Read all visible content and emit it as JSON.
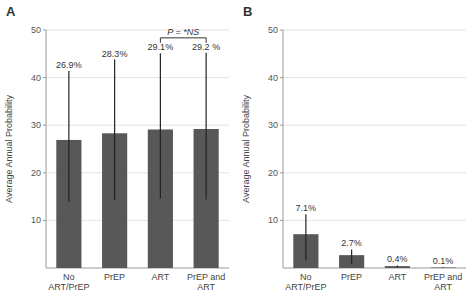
{
  "chart_data": [
    {
      "type": "bar",
      "title": "A",
      "categories": [
        "No ART/PrEP",
        "PrEP",
        "ART",
        "PrEP and ART"
      ],
      "values": [
        26.9,
        28.3,
        29.1,
        29.2
      ],
      "value_labels": [
        "26.9%",
        "28.3%",
        "29.1%",
        "29.2 %"
      ],
      "error_low": [
        13.0,
        14.0,
        14.5,
        14.8
      ],
      "error_high": [
        14.5,
        15.5,
        16.0,
        16.0
      ],
      "ylabel": "Average Annual Probability",
      "ylim": [
        0,
        50
      ],
      "yticks": [
        10,
        20,
        30,
        40,
        50
      ],
      "color": "#585858",
      "grid": true,
      "data_labels": true,
      "annotations": [
        {
          "text": "P = *NS",
          "categories": [
            "ART",
            "PrEP and ART"
          ]
        }
      ]
    },
    {
      "type": "bar",
      "title": "B",
      "categories": [
        "No ART/PrEP",
        "PrEP",
        "ART",
        "PrEP and ART"
      ],
      "values": [
        7.1,
        2.7,
        0.4,
        0.1
      ],
      "value_labels": [
        "7.1%",
        "2.7%",
        "0.4%",
        "0.1%"
      ],
      "error_low": [
        5.5,
        1.8,
        0.3,
        0.08
      ],
      "error_high": [
        4.2,
        1.2,
        0.15,
        0.05
      ],
      "ylabel": "Average Annual Probability",
      "ylim": [
        0,
        50
      ],
      "yticks": [
        10,
        20,
        30,
        40,
        50
      ],
      "color": "#585858",
      "grid": true,
      "data_labels": true
    }
  ]
}
